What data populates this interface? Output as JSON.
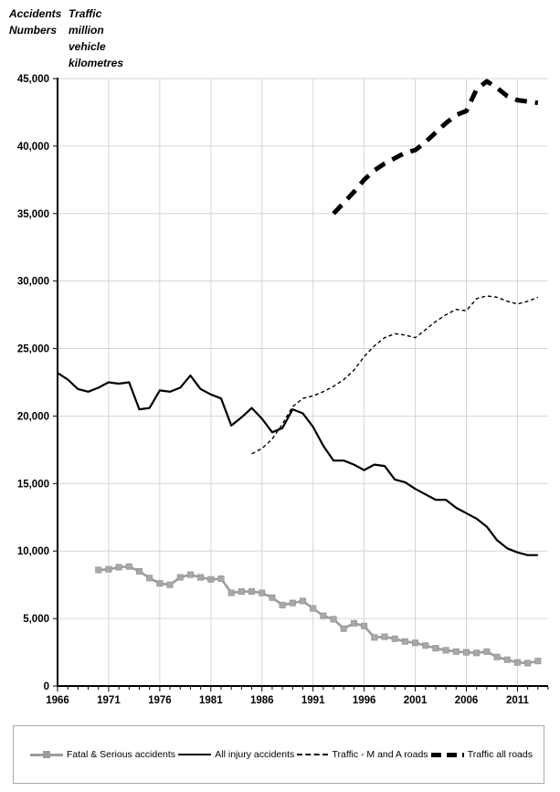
{
  "chart_data": {
    "type": "line",
    "title": "",
    "ylabel_left": "Accidents\nNumbers",
    "ylabel_right": "Traffic\nmillion\nvehicle\nkilometres",
    "xlabel": "",
    "xlim": [
      1966,
      2014
    ],
    "ylim": [
      0,
      45000
    ],
    "grid": true,
    "legend_position": "bottom",
    "x_ticks": [
      1966,
      1971,
      1976,
      1981,
      1986,
      1991,
      1996,
      2001,
      2006,
      2011
    ],
    "y_ticks": [
      0,
      5000,
      10000,
      15000,
      20000,
      25000,
      30000,
      35000,
      40000,
      45000
    ],
    "colors": {
      "gray_series": "#9c9c9c",
      "gray_marker": "#a8a8a8",
      "black_series": "#000000",
      "gridline": "#d6d6d6",
      "axis": "#000000"
    },
    "series": [
      {
        "name": "Fatal & Serious accidents",
        "style": "gray-square",
        "color": "#9c9c9c",
        "start_year": 1970,
        "values": [
          8600,
          8650,
          8800,
          8850,
          8500,
          8000,
          7600,
          7500,
          8050,
          8250,
          8050,
          7900,
          7950,
          6900,
          7000,
          7000,
          6900,
          6550,
          6000,
          6150,
          6300,
          5750,
          5200,
          4950,
          4250,
          4650,
          4450,
          3600,
          3650,
          3500,
          3300,
          3200,
          3000,
          2800,
          2650,
          2550,
          2500,
          2450,
          2550,
          2150,
          1950,
          1750,
          1700,
          1850
        ]
      },
      {
        "name": "All injury accidents",
        "style": "solid",
        "color": "#000000",
        "start_year": 1966,
        "values": [
          23200,
          22700,
          22000,
          21800,
          22100,
          22500,
          22400,
          22500,
          20500,
          20600,
          21900,
          21800,
          22100,
          23000,
          22000,
          21600,
          21300,
          19300,
          19900,
          20600,
          19800,
          18800,
          19100,
          20500,
          20200,
          19200,
          17800,
          16700,
          16700,
          16400,
          16000,
          16400,
          16300,
          15300,
          15100,
          14600,
          14200,
          13800,
          13800,
          13200,
          12800,
          12400,
          11800,
          10800,
          10200,
          9900,
          9700,
          9700
        ]
      },
      {
        "name": "Traffic - M and A roads",
        "style": "dashed-thin",
        "color": "#000000",
        "start_year": 1985,
        "values": [
          17200,
          17600,
          18300,
          19400,
          20700,
          21300,
          21500,
          21800,
          22200,
          22700,
          23400,
          24400,
          25200,
          25800,
          26100,
          26000,
          25800,
          26400,
          27000,
          27500,
          27900,
          27800,
          28700,
          28900,
          28800,
          28500,
          28300,
          28500,
          28800
        ]
      },
      {
        "name": "Traffic all roads",
        "style": "dashed-thick",
        "color": "#000000",
        "start_year": 1993,
        "values": [
          35000,
          35800,
          36600,
          37500,
          38200,
          38700,
          39100,
          39500,
          39700,
          40300,
          41000,
          41700,
          42300,
          42600,
          44200,
          44800,
          44300,
          43700,
          43400,
          43300,
          43200
        ]
      }
    ]
  }
}
